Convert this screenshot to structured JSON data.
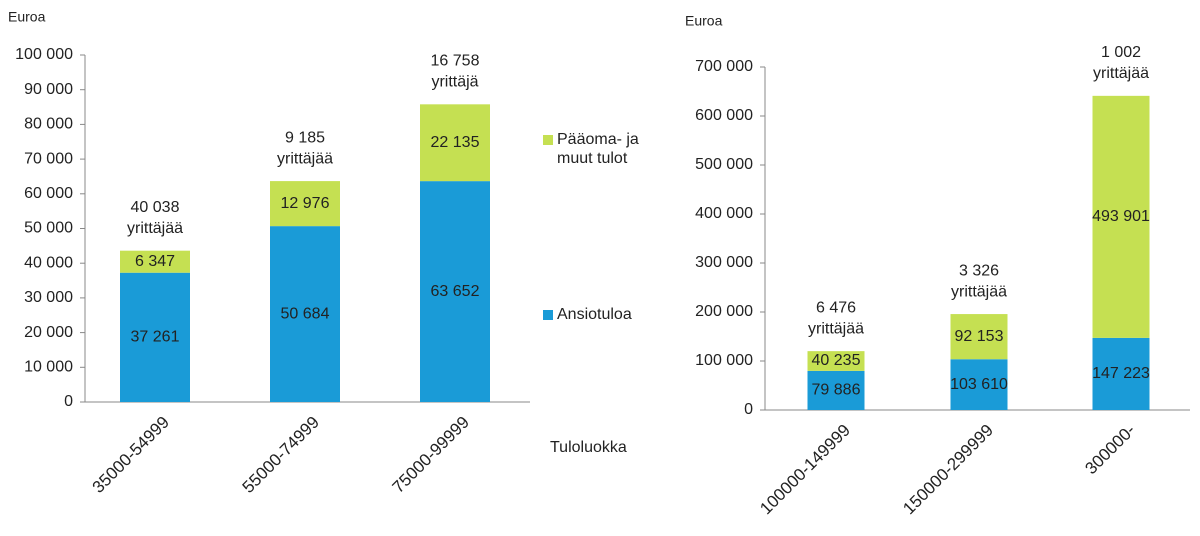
{
  "chart_data": [
    {
      "type": "stacked_bar",
      "ylabel": "Euroa",
      "xlabel": "Tuloluokka",
      "categories": [
        "35000-54999",
        "55000-74999",
        "75000-99999"
      ],
      "series": [
        {
          "name": "Ansiotuloa",
          "color": "#1a9bd7",
          "values": [
            37261,
            50684,
            63652
          ],
          "value_labels": [
            "37 261",
            "50 684",
            "63 652"
          ]
        },
        {
          "name": "Pääoma- ja muut tulot",
          "color": "#c5e052",
          "values": [
            6347,
            12976,
            22135
          ],
          "value_labels": [
            "6 347",
            "12 976",
            "22 135"
          ]
        }
      ],
      "annotations": [
        {
          "count": "40 038",
          "text": "yrittäjää"
        },
        {
          "count": "9 185",
          "text": "yrittäjää"
        },
        {
          "count": "16 758",
          "text": "yrittäjä"
        }
      ],
      "ylim": [
        0,
        100000
      ],
      "yticks": [
        0,
        {
          "value": 10000,
          "label": "10 000"
        },
        {
          "value": 20000,
          "label": "20 000"
        },
        {
          "value": 30000,
          "label": "30 000"
        },
        {
          "value": 40000,
          "label": "40 000"
        },
        {
          "value": 50000,
          "label": "50 000"
        },
        {
          "value": 60000,
          "label": "60 000"
        },
        {
          "value": 70000,
          "label": "70 000"
        },
        {
          "value": 80000,
          "label": "80 000"
        },
        {
          "value": 90000,
          "label": "90 000"
        },
        {
          "value": 100000,
          "label": "100 000"
        }
      ]
    },
    {
      "type": "stacked_bar",
      "ylabel": "Euroa",
      "categories": [
        "100000-149999",
        "150000-299999",
        "300000-"
      ],
      "series": [
        {
          "color": "#1a9bd7",
          "values": [
            79886,
            103610,
            147223
          ],
          "value_labels": [
            "79 886",
            "103 610",
            "147 223"
          ]
        },
        {
          "color": "#c5e052",
          "values": [
            40235,
            92153,
            493901
          ],
          "value_labels": [
            "40 235",
            "92 153",
            "493 901"
          ]
        }
      ],
      "annotations": [
        {
          "count": "6 476",
          "text": "yrittäjää"
        },
        {
          "count": "3 326",
          "text": "yrittäjää"
        },
        {
          "count": "1 002",
          "text": "yrittäjää"
        }
      ],
      "ylim": [
        0,
        700000
      ],
      "yticks": [
        0,
        {
          "value": 100000,
          "label": "100 000"
        },
        {
          "value": 200000,
          "label": "200 000"
        },
        {
          "value": 300000,
          "label": "300 000"
        },
        {
          "value": 400000,
          "label": "400 000"
        },
        {
          "value": 500000,
          "label": "500 000"
        },
        {
          "value": 600000,
          "label": "600 000"
        },
        {
          "value": 700000,
          "label": "700 000"
        }
      ]
    }
  ]
}
